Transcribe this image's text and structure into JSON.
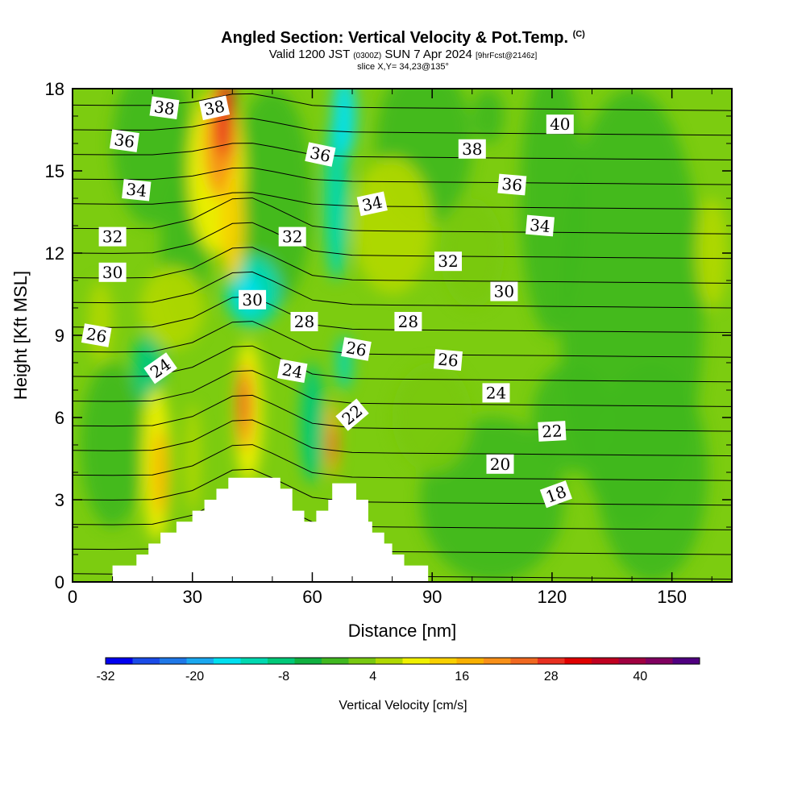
{
  "title": {
    "main": "Angled Section: Vertical Velocity & Pot.Temp.",
    "main_sup": "(C)",
    "valid_prefix": "Valid 1200 JST",
    "valid_zulu": "(0300Z)",
    "valid_date": "SUN 7 Apr 2024",
    "valid_fcst": "[9hrFcst@2146z]",
    "slice": "slice X,Y= 34,23@135°"
  },
  "chart_data": {
    "type": "heatmap",
    "xlabel": "Distance [nm]",
    "ylabel": "Height [Kft MSL]",
    "xlim": [
      0,
      165
    ],
    "ylim": [
      0,
      18
    ],
    "x_ticks": [
      "0",
      "30",
      "60",
      "90",
      "120",
      "150"
    ],
    "y_ticks": [
      "0",
      "3",
      "6",
      "9",
      "12",
      "15",
      "18"
    ],
    "colorbar": {
      "label": "Vertical Velocity [cm/s]",
      "ticks": [
        "-32",
        "-20",
        "-8",
        "4",
        "16",
        "28",
        "40"
      ],
      "range": [
        -32,
        48
      ],
      "step": 4,
      "colors": [
        "#0000f0",
        "#1a4be8",
        "#1f78e8",
        "#1aa8f0",
        "#00e0f0",
        "#00d8b0",
        "#00c878",
        "#10b040",
        "#40b820",
        "#78c810",
        "#b0d800",
        "#f0f000",
        "#f8d000",
        "#f8b000",
        "#f89018",
        "#f06820",
        "#e83020",
        "#e00000",
        "#c00020",
        "#a00040",
        "#800060",
        "#500080"
      ]
    },
    "contours": [
      {
        "label": "38",
        "value": 38
      },
      {
        "label": "36",
        "value": 36
      },
      {
        "label": "34",
        "value": 34
      },
      {
        "label": "32",
        "value": 32
      },
      {
        "label": "30",
        "value": 30
      },
      {
        "label": "28",
        "value": 28
      },
      {
        "label": "26",
        "value": 26
      },
      {
        "label": "24",
        "value": 24
      },
      {
        "label": "22",
        "value": 22
      },
      {
        "label": "20",
        "value": 20
      },
      {
        "label": "18",
        "value": 18
      }
    ],
    "contour_labels": [
      {
        "text": "38",
        "x": 23,
        "y": 17.3,
        "rot": 8
      },
      {
        "text": "38",
        "x": 35.5,
        "y": 17.3,
        "rot": -12
      },
      {
        "text": "36",
        "x": 13,
        "y": 16.1,
        "rot": 8
      },
      {
        "text": "34",
        "x": 16,
        "y": 14.3,
        "rot": 6
      },
      {
        "text": "32",
        "x": 10,
        "y": 12.6,
        "rot": 0
      },
      {
        "text": "30",
        "x": 10,
        "y": 11.3,
        "rot": 0
      },
      {
        "text": "26",
        "x": 6,
        "y": 9.0,
        "rot": 10
      },
      {
        "text": "24",
        "x": 22,
        "y": 7.8,
        "rot": -35
      },
      {
        "text": "30",
        "x": 45,
        "y": 10.3,
        "rot": 0
      },
      {
        "text": "36",
        "x": 62,
        "y": 15.6,
        "rot": 12
      },
      {
        "text": "32",
        "x": 55,
        "y": 12.6,
        "rot": 0
      },
      {
        "text": "34",
        "x": 75,
        "y": 13.8,
        "rot": -12
      },
      {
        "text": "28",
        "x": 58,
        "y": 9.5,
        "rot": 0
      },
      {
        "text": "24",
        "x": 55,
        "y": 7.7,
        "rot": 10
      },
      {
        "text": "26",
        "x": 71,
        "y": 8.5,
        "rot": 10
      },
      {
        "text": "22",
        "x": 70,
        "y": 6.1,
        "rot": -40
      },
      {
        "text": "28",
        "x": 84,
        "y": 9.5,
        "rot": 0
      },
      {
        "text": "26",
        "x": 94,
        "y": 8.1,
        "rot": 5
      },
      {
        "text": "32",
        "x": 94,
        "y": 11.7,
        "rot": 0
      },
      {
        "text": "38",
        "x": 100,
        "y": 15.8,
        "rot": 0
      },
      {
        "text": "36",
        "x": 110,
        "y": 14.5,
        "rot": 5
      },
      {
        "text": "30",
        "x": 108,
        "y": 10.6,
        "rot": 0
      },
      {
        "text": "34",
        "x": 117,
        "y": 13.0,
        "rot": 5
      },
      {
        "text": "40",
        "x": 122,
        "y": 16.7,
        "rot": 0
      },
      {
        "text": "24",
        "x": 106,
        "y": 6.9,
        "rot": 0
      },
      {
        "text": "22",
        "x": 120,
        "y": 5.5,
        "rot": -3
      },
      {
        "text": "20",
        "x": 107,
        "y": 4.3,
        "rot": 0
      },
      {
        "text": "18",
        "x": 121,
        "y": 3.2,
        "rot": -20
      }
    ],
    "terrain": [
      [
        10,
        0
      ],
      [
        10,
        0.6
      ],
      [
        16,
        0.6
      ],
      [
        16,
        1.0
      ],
      [
        19,
        1.0
      ],
      [
        19,
        1.4
      ],
      [
        22,
        1.4
      ],
      [
        22,
        1.8
      ],
      [
        26,
        1.8
      ],
      [
        26,
        2.2
      ],
      [
        30,
        2.2
      ],
      [
        30,
        2.6
      ],
      [
        33,
        2.6
      ],
      [
        33,
        3.0
      ],
      [
        36,
        3.0
      ],
      [
        36,
        3.4
      ],
      [
        39,
        3.4
      ],
      [
        39,
        3.8
      ],
      [
        52,
        3.8
      ],
      [
        52,
        3.4
      ],
      [
        55,
        3.4
      ],
      [
        55,
        2.6
      ],
      [
        58,
        2.6
      ],
      [
        58,
        2.2
      ],
      [
        61,
        2.2
      ],
      [
        61,
        2.6
      ],
      [
        64,
        2.6
      ],
      [
        64,
        3.0
      ],
      [
        65,
        3.0
      ],
      [
        65,
        3.6
      ],
      [
        71,
        3.6
      ],
      [
        71,
        3.0
      ],
      [
        74,
        3.0
      ],
      [
        74,
        2.2
      ],
      [
        75,
        2.2
      ],
      [
        75,
        1.8
      ],
      [
        78,
        1.8
      ],
      [
        78,
        1.4
      ],
      [
        80,
        1.4
      ],
      [
        80,
        1.0
      ],
      [
        83,
        1.0
      ],
      [
        83,
        0.6
      ],
      [
        89,
        0.6
      ],
      [
        89,
        0
      ],
      [
        165,
        0
      ]
    ]
  }
}
